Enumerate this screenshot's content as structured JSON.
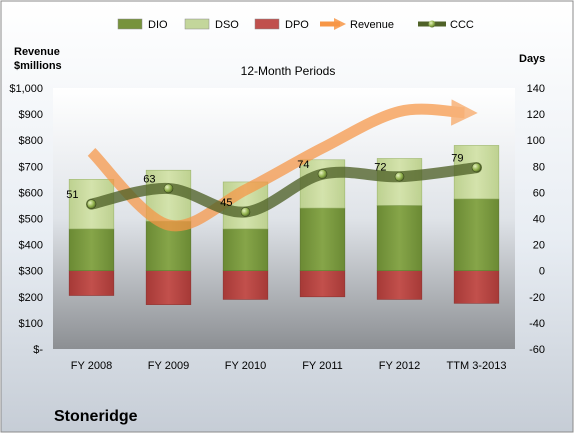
{
  "chart_data": {
    "type": "bar",
    "title": "12-Month Periods",
    "company": "Stoneridge",
    "left_axis_title": [
      "Revenue",
      "$millions"
    ],
    "right_axis_title": "Days",
    "categories": [
      "FY 2008",
      "FY 2009",
      "FY 2010",
      "FY 2011",
      "FY 2012",
      "TTM 3-2013"
    ],
    "legend": {
      "position": "top",
      "items": [
        {
          "name": "DIO",
          "color": "#77933c"
        },
        {
          "name": "DSO",
          "color": "#c3d69b"
        },
        {
          "name": "DPO",
          "color": "#c0504d"
        },
        {
          "name": "Revenue",
          "color": "#f79646"
        },
        {
          "name": "CCC",
          "color": "#4f6228"
        }
      ]
    },
    "left_axis": {
      "min": 0,
      "max": 1000,
      "step": 100,
      "tick_labels": [
        "$-",
        "$100",
        "$200",
        "$300",
        "$400",
        "$500",
        "$600",
        "$700",
        "$800",
        "$900",
        "$1,000"
      ]
    },
    "right_axis": {
      "min": -60,
      "max": 140,
      "step": 20,
      "tick_labels": [
        "-60",
        "-40",
        "-20",
        "0",
        "20",
        "40",
        "60",
        "80",
        "100",
        "120",
        "140"
      ]
    },
    "series": [
      {
        "name": "DIO",
        "axis": "right",
        "values": [
          32,
          38,
          32,
          48,
          50,
          55
        ]
      },
      {
        "name": "DSO",
        "axis": "right",
        "values": [
          38,
          39,
          36,
          37,
          36,
          41
        ]
      },
      {
        "name": "DPO",
        "axis": "right",
        "values": [
          -19,
          -26,
          -22,
          -20,
          -22,
          -25
        ]
      },
      {
        "name": "Revenue",
        "axis": "left",
        "values": [
          755,
          475,
          610,
          770,
          910,
          905
        ]
      },
      {
        "name": "CCC",
        "axis": "right",
        "values": [
          51,
          63,
          45,
          74,
          72,
          79
        ]
      }
    ],
    "ccc_labels": [
      "51",
      "63",
      "45",
      "74",
      "72",
      "79"
    ]
  }
}
